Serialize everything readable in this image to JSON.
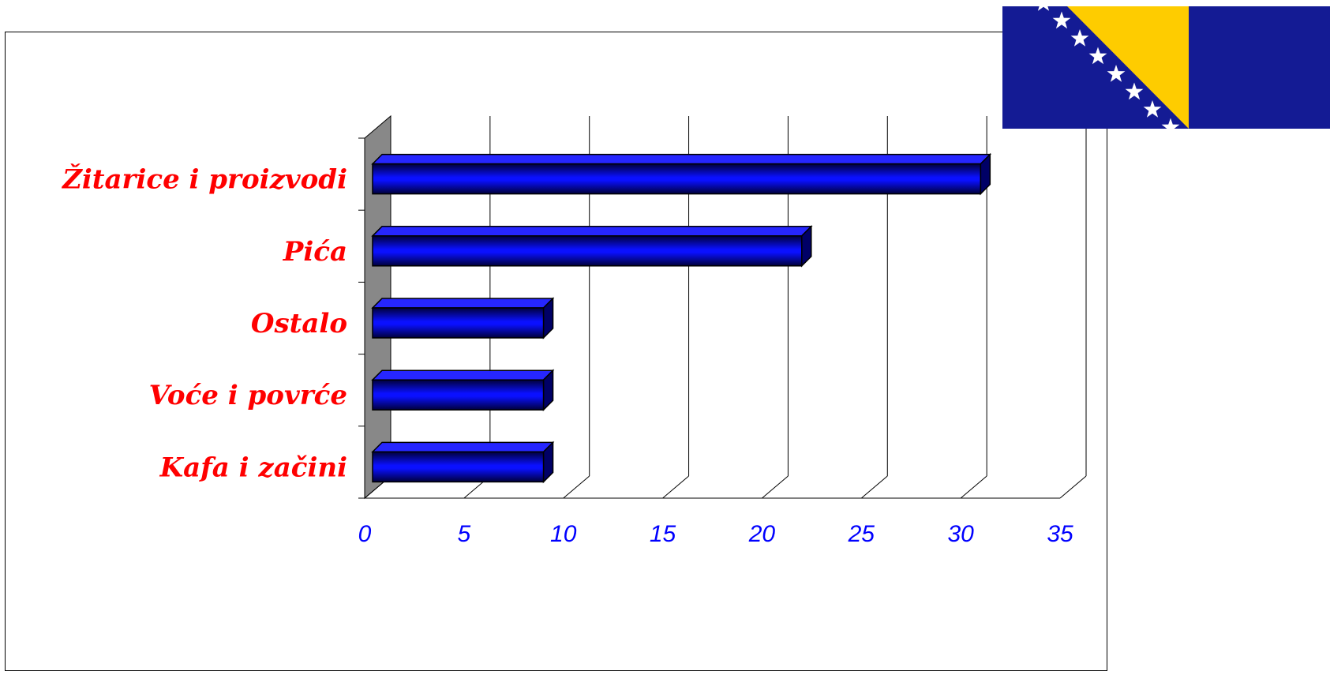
{
  "chart_data": {
    "type": "bar",
    "orientation": "horizontal",
    "style": "3d",
    "categories": [
      "Žitarice i proizvodi",
      "Pića",
      "Ostalo",
      "Voće i povrće",
      "Kafa i začini"
    ],
    "values": [
      31,
      22,
      9,
      9,
      9
    ],
    "xlim": [
      0,
      35
    ],
    "xticks": [
      0,
      5,
      10,
      15,
      20,
      25,
      30,
      35
    ],
    "xtick_labels": [
      "0",
      "5",
      "10",
      "15",
      "20",
      "25",
      "30",
      "35"
    ],
    "grid": true,
    "legend": "none",
    "title": "",
    "xlabel": "",
    "ylabel": ""
  },
  "colors": {
    "bar": "#0000cc",
    "bar_dark": "#000066",
    "category_label": "#ff0000",
    "tick_label": "#0000ff",
    "back_wall": "#888888",
    "flag_blue": "#141b94",
    "flag_yellow": "#fecc00"
  },
  "decor": {
    "flag": "flag-bosnia-and-herzegovina-icon"
  }
}
